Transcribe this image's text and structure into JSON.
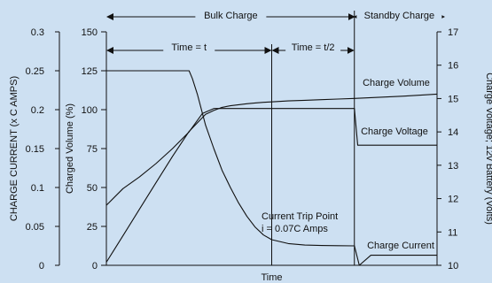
{
  "chart_data": {
    "type": "line",
    "background": "#cde0f2",
    "xlabel": "Time",
    "axes": {
      "left_outer": {
        "label": "CHARGE CURRENT (x C AMPS)",
        "ticks": [
          "0",
          "0.05",
          "0.1",
          "0.15",
          "0.2",
          "0.25",
          "0.3"
        ],
        "range": [
          0,
          0.3
        ]
      },
      "left_inner": {
        "label": "Charged Volume (%)",
        "ticks": [
          "0",
          "25",
          "50",
          "75",
          "100",
          "125",
          "150"
        ],
        "range": [
          0,
          150
        ]
      },
      "right": {
        "label": "Charge Voltage; 12v Battery (Volts)",
        "ticks": [
          "10",
          "11",
          "12",
          "13",
          "14",
          "15",
          "16",
          "17"
        ],
        "range": [
          10,
          17
        ]
      }
    },
    "phases": [
      {
        "name": "Bulk Charge",
        "x_start": 0,
        "x_end": 1.5
      },
      {
        "name": "Standby Charge",
        "x_start": 1.5,
        "x_end": 2.0
      }
    ],
    "intervals": [
      {
        "label": "Time = t",
        "x_start": 0,
        "x_end": 1.0
      },
      {
        "label": "Time = t/2",
        "x_start": 1.0,
        "x_end": 1.5
      }
    ],
    "annotation_lines": [
      "Current Trip Point",
      "i = 0.07C Amps"
    ],
    "series": [
      {
        "name": "Charge Volume",
        "axis": "left_inner",
        "x": [
          0,
          0.1,
          0.2,
          0.3,
          0.4,
          0.5,
          0.6,
          0.65,
          0.7,
          0.75,
          0.8,
          0.85,
          0.9,
          0.95,
          1.0,
          1.1,
          1.2,
          1.3,
          1.4,
          1.5,
          1.6,
          1.7,
          1.8,
          1.9,
          2.0
        ],
        "values": [
          2,
          19,
          36,
          53,
          70,
          86,
          97,
          99.5,
          101.5,
          102.5,
          103.2,
          103.8,
          104.3,
          104.7,
          105,
          105.6,
          106,
          106.4,
          106.8,
          107.2,
          107.7,
          108.2,
          108.7,
          109.3,
          110
        ]
      },
      {
        "name": "Charge Voltage",
        "axis": "right",
        "x": [
          0,
          0.1,
          0.2,
          0.3,
          0.4,
          0.5,
          0.58,
          0.65,
          0.7,
          1.5,
          1.52,
          2.0
        ],
        "values": [
          11.8,
          12.3,
          12.65,
          13.05,
          13.5,
          14.0,
          14.55,
          14.7,
          14.7,
          14.7,
          13.6,
          13.6
        ]
      },
      {
        "name": "Charge Current",
        "axis": "left_outer",
        "x": [
          0,
          0.5,
          0.52,
          0.55,
          0.6,
          0.65,
          0.7,
          0.75,
          0.8,
          0.85,
          0.9,
          0.95,
          1.0,
          1.1,
          1.2,
          1.3,
          1.4,
          1.5,
          1.53,
          1.6,
          1.65,
          2.0
        ],
        "values": [
          0.25,
          0.25,
          0.24,
          0.22,
          0.18,
          0.15,
          0.122,
          0.1,
          0.08,
          0.063,
          0.049,
          0.039,
          0.033,
          0.028,
          0.026,
          0.0255,
          0.0252,
          0.025,
          0,
          0.013,
          0.013,
          0.013
        ]
      }
    ]
  }
}
